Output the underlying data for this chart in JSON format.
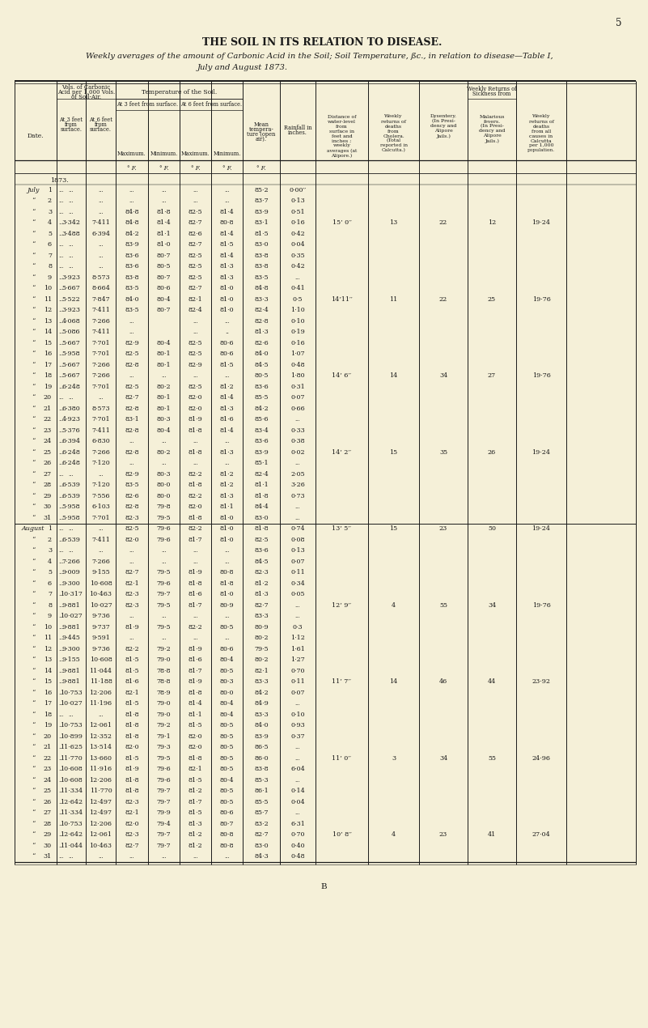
{
  "bg_color": "#f5f0d8",
  "page_number": "5",
  "title": "THE SOIL IN ITS RELATION TO DISEASE.",
  "subtitle1": "Weekly averages of the amount of Carbonic Acid in the Soil; Soil Temperature, ßc., in relation to disease—Table I,",
  "subtitle2": "July and August 1873.",
  "july_rows": [
    {
      "day": "1",
      "acid3": "...",
      "acid6": "...",
      "t3max": "...",
      "t3min": "...",
      "t6max": "...",
      "t6min": "...",
      "mean_temp": "85·2",
      "rainfall": "0·00′′"
    },
    {
      "day": "2",
      "acid3": "...",
      "acid6": "...",
      "t3max": "...",
      "t3min": "...",
      "t6max": "...",
      "t6min": "...",
      "mean_temp": "83·7",
      "rainfall": "0·13"
    },
    {
      "day": "3",
      "acid3": "...",
      "acid6": "...",
      "t3max": "84·8",
      "t3min": "81·8",
      "t6max": "82·5",
      "t6min": "81·4",
      "mean_temp": "83·9",
      "rainfall": "0·51"
    },
    {
      "day": "4",
      "acid3": "3·342",
      "acid6": "7·411",
      "t3max": "84·8",
      "t3min": "81·4",
      "t6max": "82·7",
      "t6min": "80·8",
      "mean_temp": "83·1",
      "rainfall": "0·16",
      "dist": "15’ 0′′",
      "cholera": "13",
      "dysentery": "22",
      "malarious": "12",
      "weekly_deaths": "19·24"
    },
    {
      "day": "5",
      "acid3": "3·488",
      "acid6": "6·394",
      "t3max": "84·2",
      "t3min": "81·1",
      "t6max": "82·6",
      "t6min": "81·4",
      "mean_temp": "81·5",
      "rainfall": "0·42"
    },
    {
      "day": "6",
      "acid3": "...",
      "acid6": "...",
      "t3max": "83·9",
      "t3min": "81·0",
      "t6max": "82·7",
      "t6min": "81·5",
      "mean_temp": "83·0",
      "rainfall": "0·04"
    },
    {
      "day": "7",
      "acid3": "...",
      "acid6": "...",
      "t3max": "83·6",
      "t3min": "80·7",
      "t6max": "82·5",
      "t6min": "81·4",
      "mean_temp": "83·8",
      "rainfall": "0·35"
    },
    {
      "day": "8",
      "acid3": "...",
      "acid6": "...",
      "t3max": "83·6",
      "t3min": "80·5",
      "t6max": "82·5",
      "t6min": "81·3",
      "mean_temp": "83·8",
      "rainfall": "0·42"
    },
    {
      "day": "9",
      "acid3": "3·923",
      "acid6": "8·573",
      "t3max": "83·8",
      "t3min": "80·7",
      "t6max": "82·5",
      "t6min": "81·3",
      "mean_temp": "83·5",
      "rainfall": "."
    },
    {
      "day": "10",
      "acid3": "5·667",
      "acid6": "8·664",
      "t3max": "83·5",
      "t3min": "80·6",
      "t6max": "82·7",
      "t6min": "81·0",
      "mean_temp": "84·8",
      "rainfall": "0·41"
    },
    {
      "day": "11",
      "acid3": "5·522",
      "acid6": "7·847",
      "t3max": "84·0",
      "t3min": "80·4",
      "t6max": "82·1",
      "t6min": "81·0",
      "mean_temp": "83·3",
      "rainfall": "0·5",
      "dist": "14’11′′",
      "cholera": "11",
      "dysentery": "22",
      "malarious": "25",
      "weekly_deaths": "19·76"
    },
    {
      "day": "12",
      "acid3": "3·923",
      "acid6": "7·411",
      "t3max": "83·5",
      "t3min": "80·7",
      "t6max": "82·4",
      "t6min": "81·0",
      "mean_temp": "82·4",
      "rainfall": "1·10"
    },
    {
      "day": "13",
      "acid3": "4·068",
      "acid6": "7·266",
      "t3max": "...",
      "t3min": "",
      "t6max": "...",
      "t6min": "...",
      "mean_temp": "82·8",
      "rainfall": "0·10"
    },
    {
      "day": "14",
      "acid3": "5·086",
      "acid6": "7·411",
      "t3max": "...",
      "t3min": "",
      "t6max": "...",
      "t6min": "..",
      "mean_temp": "81·3",
      "rainfall": "0·19"
    },
    {
      "day": "15",
      "acid3": "5·667",
      "acid6": "7·701",
      "t3max": "82·9",
      "t3min": "80·4",
      "t6max": "82·5",
      "t6min": "80·6",
      "mean_temp": "82·6",
      "rainfall": "0·16"
    },
    {
      "day": "16",
      "acid3": "5·958",
      "acid6": "7·701",
      "t3max": "82·5",
      "t3min": "80·1",
      "t6max": "82·5",
      "t6min": "80·6",
      "mean_temp": "84·0",
      "rainfall": "1·07"
    },
    {
      "day": "17",
      "acid3": "5·667",
      "acid6": "7·266",
      "t3max": "82·8",
      "t3min": "80·1",
      "t6max": "82·9",
      "t6min": "81·5",
      "mean_temp": "84·5",
      "rainfall": "0·48"
    },
    {
      "day": "18",
      "acid3": "5·667",
      "acid6": "7·266",
      "t3max": "...",
      "t3min": "...",
      "t6max": "...",
      "t6min": "...",
      "mean_temp": "80·5",
      "rainfall": "1·80",
      "dist": "14’ 6′′",
      "cholera": "14",
      "dysentery": "34",
      "malarious": "27",
      "weekly_deaths": "19·76"
    },
    {
      "day": "19",
      "acid3": "6·248",
      "acid6": "7·701",
      "t3max": "82·5",
      "t3min": "80·2",
      "t6max": "82·5",
      "t6min": "81·2",
      "mean_temp": "83·6",
      "rainfall": "0·31"
    },
    {
      "day": "20",
      "acid3": "...",
      "acid6": "...",
      "t3max": "82·7",
      "t3min": "80·1",
      "t6max": "82·0",
      "t6min": "81·4",
      "mean_temp": "85·5",
      "rainfall": "0·07"
    },
    {
      "day": "21",
      "acid3": "6·380",
      "acid6": "8·573",
      "t3max": "82·8",
      "t3min": "80·1",
      "t6max": "82·0",
      "t6min": "81·3",
      "mean_temp": "84·2",
      "rainfall": "0·66"
    },
    {
      "day": "22",
      "acid3": "4·923",
      "acid6": "7·701",
      "t3max": "83·1",
      "t3min": "80·3",
      "t6max": "81·9",
      "t6min": "81·6",
      "mean_temp": "85·6",
      "rainfall": "..."
    },
    {
      "day": "23",
      "acid3": "5·376",
      "acid6": "7·411",
      "t3max": "82·8",
      "t3min": "80·4",
      "t6max": "81·8",
      "t6min": "81·4",
      "mean_temp": "83·4",
      "rainfall": "0·33"
    },
    {
      "day": "24",
      "acid3": "6·394",
      "acid6": "6·830",
      "t3max": "...",
      "t3min": "...",
      "t6max": "...",
      "t6min": "...",
      "mean_temp": "83·6",
      "rainfall": "0·38"
    },
    {
      "day": "25",
      "acid3": "6·248",
      "acid6": "7·266",
      "t3max": "82·8",
      "t3min": "80·2",
      "t6max": "81·8",
      "t6min": "81·3",
      "mean_temp": "83·9",
      "rainfall": "0·02",
      "dist": "14’ 2′′",
      "cholera": "15",
      "dysentery": "35",
      "malarious": "26",
      "weekly_deaths": "19·24"
    },
    {
      "day": "26",
      "acid3": "6·248",
      "acid6": "7·120",
      "t3max": "...",
      "t3min": "...",
      "t6max": "...",
      "t6min": "...",
      "mean_temp": "85·1",
      "rainfall": "..."
    },
    {
      "day": "27",
      "acid3": "...",
      "acid6": "...",
      "t3max": "82·9",
      "t3min": "80·3",
      "t6max": "82·2",
      "t6min": "81·2",
      "mean_temp": "82·4",
      "rainfall": "2·05"
    },
    {
      "day": "28",
      "acid3": "6·539",
      "acid6": "7·120",
      "t3max": "83·5",
      "t3min": "80·0",
      "t6max": "81·8",
      "t6min": "81·2",
      "mean_temp": "81·1",
      "rainfall": "3·26"
    },
    {
      "day": "29",
      "acid3": "6·539",
      "acid6": "7·556",
      "t3max": "82·6",
      "t3min": "80·0",
      "t6max": "82·2",
      "t6min": "81·3",
      "mean_temp": "81·8",
      "rainfall": "0·73"
    },
    {
      "day": "30",
      "acid3": "5·958",
      "acid6": "6·103",
      "t3max": "82·8",
      "t3min": "79·8",
      "t6max": "82·0",
      "t6min": "81·1",
      "mean_temp": "84·4",
      "rainfall": "..."
    },
    {
      "day": "31",
      "acid3": "5·958",
      "acid6": "7·701",
      "t3max": "82·3",
      "t3min": "79·5",
      "t6max": "81·8",
      "t6min": "81·0",
      "mean_temp": "83·0",
      "rainfall": "..."
    }
  ],
  "august_rows": [
    {
      "day": "1",
      "acid3": "...",
      "acid6": "...",
      "t3max": "82·5",
      "t3min": "79·6",
      "t6max": "82·2",
      "t6min": "81·0",
      "mean_temp": "81·8",
      "rainfall": "0·74",
      "dist": "13’ 5′′",
      "cholera": "15",
      "dysentery": "23",
      "malarious": "50",
      "weekly_deaths": "19·24"
    },
    {
      "day": "2",
      "acid3": "6·539",
      "acid6": "7·411",
      "t3max": "82·0",
      "t3min": "79·6",
      "t6max": "81·7",
      "t6min": "81·0",
      "mean_temp": "82·5",
      "rainfall": "0·08"
    },
    {
      "day": "3",
      "acid3": "...",
      "acid6": "...",
      "t3max": "...",
      "t3min": "...",
      "t6max": "...",
      "t6min": "...",
      "mean_temp": "83·6",
      "rainfall": "0·13"
    },
    {
      "day": "4",
      "acid3": "7·266",
      "acid6": "7·266",
      "t3max": "...",
      "t3min": "...",
      "t6max": "...",
      "t6min": "...",
      "mean_temp": "84·5",
      "rainfall": "0·07"
    },
    {
      "day": "5",
      "acid3": "9·009",
      "acid6": "9·155",
      "t3max": "82·7",
      "t3min": "79·5",
      "t6max": "81·9",
      "t6min": "80·8",
      "mean_temp": "82·3",
      "rainfall": "0·11"
    },
    {
      "day": "6",
      "acid3": "9·300",
      "acid6": "10·608",
      "t3max": "82·1",
      "t3min": "79·6",
      "t6max": "81·8",
      "t6min": "81·8",
      "mean_temp": "81·2",
      "rainfall": "0·34"
    },
    {
      "day": "7",
      "acid3": "10·317",
      "acid6": "10·463",
      "t3max": "82·3",
      "t3min": "79·7",
      "t6max": "81·6",
      "t6min": "81·0",
      "mean_temp": "81·3",
      "rainfall": "0·05"
    },
    {
      "day": "8",
      "acid3": "9·881",
      "acid6": "10·027",
      "t3max": "82·3",
      "t3min": "79·5",
      "t6max": "81·7",
      "t6min": "80·9",
      "mean_temp": "82·7",
      "rainfall": "...",
      "dist": "12’ 9′′",
      "cholera": "4",
      "dysentery": "55",
      "malarious": "34",
      "weekly_deaths": "19·76"
    },
    {
      "day": "9",
      "acid3": "10·027",
      "acid6": "9·736",
      "t3max": "...",
      "t3min": "...",
      "t6max": "...",
      "t6min": "...",
      "mean_temp": "83·3",
      "rainfall": "..."
    },
    {
      "day": "10",
      "acid3": "9·881",
      "acid6": "9·737",
      "t3max": "81·9",
      "t3min": "79·5",
      "t6max": "82·2",
      "t6min": "80·5",
      "mean_temp": "80·9",
      "rainfall": "0·3"
    },
    {
      "day": "11",
      "acid3": "9·445",
      "acid6": "9·591",
      "t3max": "...",
      "t3min": "...",
      "t6max": "...",
      "t6min": "...",
      "mean_temp": "80·2",
      "rainfall": "1·12"
    },
    {
      "day": "12",
      "acid3": "9·300",
      "acid6": "9·736",
      "t3max": "82·2",
      "t3min": "79·2",
      "t6max": "81·9",
      "t6min": "80·6",
      "mean_temp": "79·5",
      "rainfall": "1·61"
    },
    {
      "day": "13",
      "acid3": "9·155",
      "acid6": "10·608",
      "t3max": "81·5",
      "t3min": "79·0",
      "t6max": "81·6",
      "t6min": "80·4",
      "mean_temp": "80·2",
      "rainfall": "1·27"
    },
    {
      "day": "14",
      "acid3": "9·881",
      "acid6": "11·044",
      "t3max": "81·5",
      "t3min": "78·8",
      "t6max": "81·7",
      "t6min": "80·5",
      "mean_temp": "82·1",
      "rainfall": "0·70"
    },
    {
      "day": "15",
      "acid3": "9·881",
      "acid6": "11·188",
      "t3max": "81·6",
      "t3min": "78·8",
      "t6max": "81·9",
      "t6min": "80·3",
      "mean_temp": "83·3",
      "rainfall": "0·11",
      "dist": "11’ 7′′",
      "cholera": "14",
      "dysentery": "46",
      "malarious": "44",
      "weekly_deaths": "23·92"
    },
    {
      "day": "16",
      "acid3": "10·753",
      "acid6": "12·206",
      "t3max": "82·1",
      "t3min": "78·9",
      "t6max": "81·8",
      "t6min": "80·0",
      "mean_temp": "84·2",
      "rainfall": "0·07"
    },
    {
      "day": "17",
      "acid3": "10·027",
      "acid6": "11·196",
      "t3max": "81·5",
      "t3min": "79·0",
      "t6max": "81·4",
      "t6min": "80·4",
      "mean_temp": "84·9",
      "rainfall": "..."
    },
    {
      "day": "18",
      "acid3": "...",
      "acid6": "...",
      "t3max": "81·8",
      "t3min": "79·0",
      "t6max": "81·1",
      "t6min": "80·4",
      "mean_temp": "83·3",
      "rainfall": "0·10"
    },
    {
      "day": "19",
      "acid3": "10·753",
      "acid6": "12·061",
      "t3max": "81·8",
      "t3min": "79·2",
      "t6max": "81·5",
      "t6min": "80·5",
      "mean_temp": "84·0",
      "rainfall": "0·93"
    },
    {
      "day": "20",
      "acid3": "10·899",
      "acid6": "12·352",
      "t3max": "81·8",
      "t3min": "79·1",
      "t6max": "82·0",
      "t6min": "80·5",
      "mean_temp": "83·9",
      "rainfall": "0·37"
    },
    {
      "day": "21",
      "acid3": "11·625",
      "acid6": "13·514",
      "t3max": "82·0",
      "t3min": "79·3",
      "t6max": "82·0",
      "t6min": "80·5",
      "mean_temp": "86·5",
      "rainfall": "..."
    },
    {
      "day": "22",
      "acid3": "11·770",
      "acid6": "13·660",
      "t3max": "81·5",
      "t3min": "79·5",
      "t6max": "81·8",
      "t6min": "80·5",
      "mean_temp": "86·0",
      "rainfall": "...",
      "dist": "11’ 0′′",
      "cholera": "3",
      "dysentery": "34",
      "malarious": "55",
      "weekly_deaths": "24·96"
    },
    {
      "day": "23",
      "acid3": "10·608",
      "acid6": "11·916",
      "t3max": "81·9",
      "t3min": "79·6",
      "t6max": "82·1",
      "t6min": "80·5",
      "mean_temp": "83·8",
      "rainfall": "6·04"
    },
    {
      "day": "24",
      "acid3": "10·608",
      "acid6": "12·206",
      "t3max": "81·8",
      "t3min": "79·6",
      "t6max": "81·5",
      "t6min": "80·4",
      "mean_temp": "85·3",
      "rainfall": "..."
    },
    {
      "day": "25",
      "acid3": "11·334",
      "acid6": "11·770",
      "t3max": "81·8",
      "t3min": "79·7",
      "t6max": "81·2",
      "t6min": "80·5",
      "mean_temp": "86·1",
      "rainfall": "0·14"
    },
    {
      "day": "26",
      "acid3": "12·642",
      "acid6": "12·497",
      "t3max": "82·3",
      "t3min": "79·7",
      "t6max": "81·7",
      "t6min": "80·5",
      "mean_temp": "85·5",
      "rainfall": "0·04"
    },
    {
      "day": "27",
      "acid3": "11·334",
      "acid6": "12·497",
      "t3max": "82·1",
      "t3min": "79·9",
      "t6max": "81·5",
      "t6min": "80·6",
      "mean_temp": "85·7",
      "rainfall": "..."
    },
    {
      "day": "28",
      "acid3": "10·753",
      "acid6": "12·206",
      "t3max": "82·0",
      "t3min": "79·4",
      "t6max": "81·3",
      "t6min": "80·7",
      "mean_temp": "83·2",
      "rainfall": "6·31"
    },
    {
      "day": "29",
      "acid3": "12·642",
      "acid6": "12·061",
      "t3max": "82·3",
      "t3min": "79·7",
      "t6max": "81·2",
      "t6min": "80·8",
      "mean_temp": "82·7",
      "rainfall": "0·70",
      "dist": "10’ 8′′",
      "cholera": "4",
      "dysentery": "23",
      "malarious": "41",
      "weekly_deaths": "27·04"
    },
    {
      "day": "30",
      "acid3": "11·044",
      "acid6": "10·463",
      "t3max": "82·7",
      "t3min": "79·7",
      "t6max": "81·2",
      "t6min": "80·8",
      "mean_temp": "83·0",
      "rainfall": "0·40"
    },
    {
      "day": "31",
      "acid3": "...",
      "acid6": "...",
      "t3max": "...",
      "t3min": "...",
      "t6max": "...",
      "t6min": "...",
      "mean_temp": "84·3",
      "rainfall": "0·48"
    }
  ]
}
